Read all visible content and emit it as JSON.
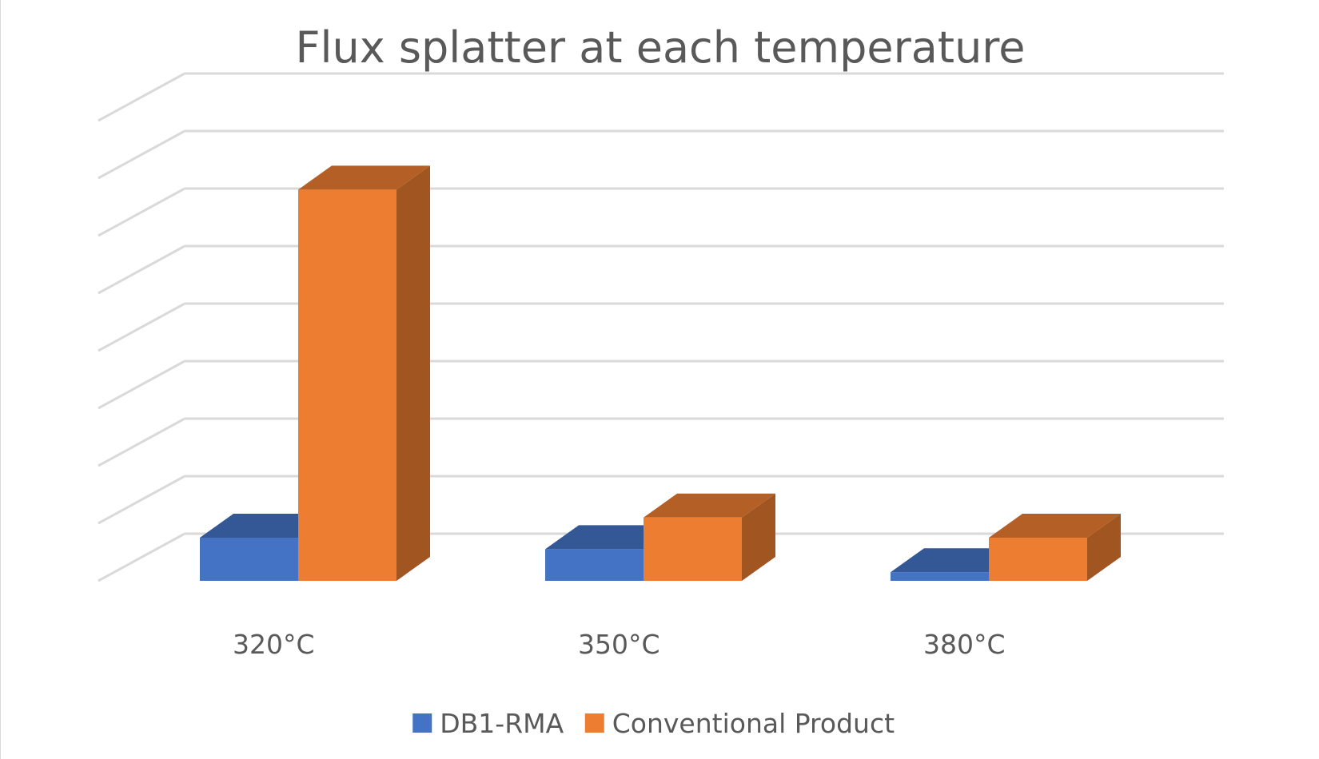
{
  "chart_data": {
    "type": "bar",
    "style": "3d-clustered-column",
    "title": "Flux splatter at each temperature",
    "xlabel": "",
    "ylabel": "",
    "categories": [
      "320°C",
      "350°C",
      "380°C"
    ],
    "series": [
      {
        "name": "DB1-RMA",
        "color": "#4472C4",
        "values": [
          0.75,
          0.55,
          0.15
        ]
      },
      {
        "name": "Conventional Product",
        "color": "#ED7D31",
        "values": [
          6.8,
          1.1,
          0.75
        ]
      }
    ],
    "ylim": [
      0,
      8
    ],
    "y_tick_labels_shown": false,
    "grid": true,
    "legend": "bottom"
  }
}
